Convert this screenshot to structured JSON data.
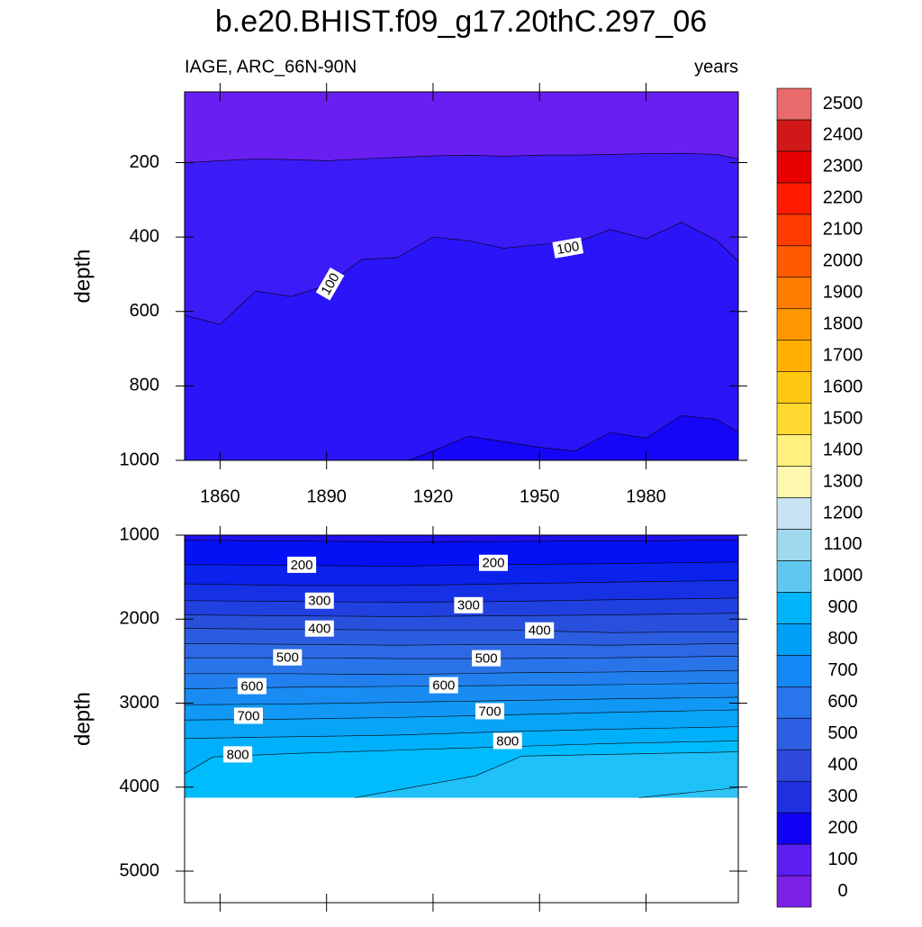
{
  "chart_data": {
    "type": "contour",
    "title": "b.e20.BHIST.f09_g17.20thC.297_06",
    "subtitle_left": "IAGE, ARC_66N-90N",
    "subtitle_right": "years",
    "panels": [
      {
        "xlim": [
          1850,
          2006
        ],
        "xticks": [
          1860,
          1890,
          1920,
          1950,
          1980
        ],
        "ylim": [
          10,
          1000
        ],
        "yticks": [
          200,
          400,
          600,
          800,
          1000
        ],
        "ylabel": "depth",
        "base_color": "#6a1ff2",
        "fill_limit": 1000,
        "contours": [
          {
            "color": "#3b1cf6",
            "x": [
              1850,
              1860,
              1870,
              1880,
              1890,
              1900,
              1910,
              1920,
              1930,
              1940,
              1950,
              1960,
              1970,
              1980,
              1990,
              2000,
              2006
            ],
            "depth": [
              200,
              195,
              190,
              192,
              195,
              190,
              186,
              182,
              180,
              183,
              180,
              180,
              178,
              176,
              175,
              178,
              190
            ]
          },
          {
            "color": "#2a14f8",
            "x": [
              1850,
              1860,
              1870,
              1880,
              1890,
              1900,
              1910,
              1920,
              1930,
              1940,
              1950,
              1960,
              1970,
              1980,
              1990,
              2000,
              2006
            ],
            "depth": [
              610,
              635,
              545,
              560,
              530,
              460,
              455,
              400,
              410,
              430,
              420,
              415,
              380,
              405,
              360,
              410,
              465
            ]
          },
          {
            "color": "#1606f8",
            "x": [
              1913,
              1920,
              1930,
              1940,
              1950,
              1960,
              1970,
              1980,
              1990,
              2000,
              2006
            ],
            "depth": [
              1000,
              975,
              935,
              950,
              965,
              975,
              925,
              940,
              880,
              890,
              925
            ]
          }
        ],
        "contour_labels": [
          {
            "level": 100,
            "x": 1891,
            "y": 526
          },
          {
            "level": 100,
            "x": 1958,
            "y": 429
          }
        ]
      },
      {
        "xlim": [
          1850,
          2006
        ],
        "xticks": [
          1860,
          1890,
          1920,
          1950,
          1980
        ],
        "ylim": [
          1000,
          5375
        ],
        "yticks": [
          1000,
          2000,
          3000,
          4000,
          5000
        ],
        "ylabel": "depth",
        "base_color": "#2010ee",
        "fill_limit": 4125,
        "contours": [
          {
            "color": "#0510f4",
            "x": [
              1850,
              1880,
              1910,
              1940,
              1970,
              2006
            ],
            "depth": [
              1060,
              1070,
              1080,
              1075,
              1070,
              1060
            ]
          },
          {
            "color": "#0a22ec",
            "x": [
              1850,
              1880,
              1910,
              1940,
              1970,
              2006
            ],
            "depth": [
              1350,
              1360,
              1370,
              1350,
              1340,
              1320
            ]
          },
          {
            "color": "#1630e4",
            "x": [
              1850,
              1880,
              1910,
              1940,
              1970,
              2006
            ],
            "depth": [
              1580,
              1600,
              1600,
              1580,
              1560,
              1540
            ]
          },
          {
            "color": "#2040e0",
            "x": [
              1850,
              1880,
              1910,
              1940,
              1970,
              2006
            ],
            "depth": [
              1780,
              1790,
              1800,
              1790,
              1770,
              1750
            ]
          },
          {
            "color": "#2850dc",
            "x": [
              1850,
              1880,
              1910,
              1940,
              1970,
              2006
            ],
            "depth": [
              1950,
              1960,
              1970,
              1960,
              1950,
              1930
            ]
          },
          {
            "color": "#2c5ce0",
            "x": [
              1850,
              1880,
              1910,
              1940,
              1970,
              2006
            ],
            "depth": [
              2110,
              2120,
              2130,
              2130,
              2160,
              2150
            ]
          },
          {
            "color": "#2e68e4",
            "x": [
              1850,
              1880,
              1910,
              1940,
              1970,
              2006
            ],
            "depth": [
              2290,
              2300,
              2310,
              2300,
              2310,
              2290
            ]
          },
          {
            "color": "#2a74ea",
            "x": [
              1850,
              1880,
              1910,
              1940,
              1970,
              2006
            ],
            "depth": [
              2460,
              2460,
              2470,
              2470,
              2460,
              2440
            ]
          },
          {
            "color": "#2280ee",
            "x": [
              1850,
              1880,
              1910,
              1940,
              1970,
              2006
            ],
            "depth": [
              2650,
              2650,
              2660,
              2640,
              2630,
              2610
            ]
          },
          {
            "color": "#188cf2",
            "x": [
              1850,
              1880,
              1910,
              1940,
              1970,
              2006
            ],
            "depth": [
              2830,
              2810,
              2800,
              2790,
              2780,
              2760
            ]
          },
          {
            "color": "#1098f4",
            "x": [
              1850,
              1880,
              1910,
              1940,
              1970,
              2006
            ],
            "depth": [
              3020,
              3010,
              2990,
              2970,
              2950,
              2930
            ]
          },
          {
            "color": "#08a4f8",
            "x": [
              1850,
              1880,
              1910,
              1940,
              1970,
              2006
            ],
            "depth": [
              3200,
              3190,
              3170,
              3140,
              3110,
              3080
            ]
          },
          {
            "color": "#00b0fa",
            "x": [
              1850,
              1880,
              1910,
              1940,
              1970,
              2006
            ],
            "depth": [
              3420,
              3400,
              3380,
              3340,
              3310,
              3280
            ]
          },
          {
            "color": "#00bcfc",
            "x": [
              1850,
              1858,
              1880,
              1910,
              1940,
              1970,
              2006
            ],
            "depth": [
              3840,
              3640,
              3600,
              3560,
              3520,
              3480,
              3450
            ]
          },
          {
            "color": "#20c0f8",
            "x": [
              1898,
              1932,
              1945,
              2006
            ],
            "depth": [
              4125,
              3865,
              3630,
              3580
            ]
          },
          {
            "color": "#30c4f6",
            "x": [
              1978,
              2006
            ],
            "depth": [
              4125,
              4005
            ]
          }
        ],
        "contour_labels": [
          {
            "level": 200,
            "x": 1883,
            "y": 1353
          },
          {
            "level": 200,
            "x": 1937,
            "y": 1330
          },
          {
            "level": 300,
            "x": 1888,
            "y": 1780
          },
          {
            "level": 300,
            "x": 1930,
            "y": 1834
          },
          {
            "level": 400,
            "x": 1888,
            "y": 2112
          },
          {
            "level": 400,
            "x": 1950,
            "y": 2134
          },
          {
            "level": 500,
            "x": 1879,
            "y": 2455
          },
          {
            "level": 500,
            "x": 1935,
            "y": 2465
          },
          {
            "level": 600,
            "x": 1869,
            "y": 2797
          },
          {
            "level": 600,
            "x": 1923,
            "y": 2786
          },
          {
            "level": 700,
            "x": 1868,
            "y": 3150
          },
          {
            "level": 700,
            "x": 1936,
            "y": 3096
          },
          {
            "level": 800,
            "x": 1865,
            "y": 3610
          },
          {
            "level": 800,
            "x": 1941,
            "y": 3450
          }
        ]
      }
    ],
    "colorbar": {
      "levels": [
        0,
        100,
        200,
        300,
        400,
        500,
        600,
        700,
        800,
        900,
        1000,
        1100,
        1200,
        1300,
        1400,
        1500,
        1600,
        1700,
        1800,
        1900,
        2000,
        2100,
        2200,
        2300,
        2400,
        2500
      ],
      "colors": [
        "#7c22e6",
        "#5c1ef2",
        "#1000f6",
        "#2030e0",
        "#2e48dc",
        "#2f60e4",
        "#2a74ec",
        "#1488f4",
        "#00a0f8",
        "#00b4fa",
        "#60c8f0",
        "#a0d8ee",
        "#c8e4f2",
        "#fff8b0",
        "#fff080",
        "#ffd830",
        "#ffc810",
        "#ffb000",
        "#ff9800",
        "#ff7c00",
        "#ff5a00",
        "#ff3c00",
        "#ff1a00",
        "#e80000",
        "#d01818",
        "#e86a6a"
      ]
    }
  }
}
